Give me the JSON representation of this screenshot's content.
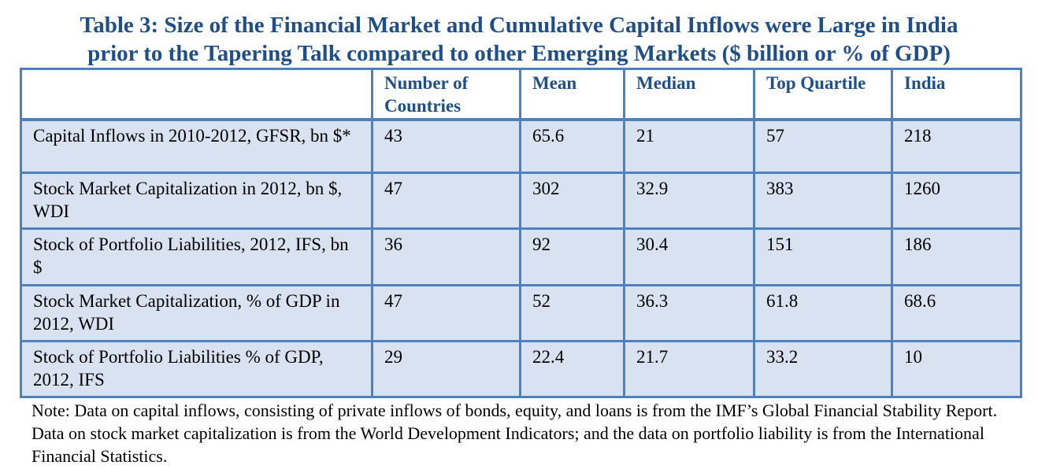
{
  "title": {
    "line1": "Table 3: Size of the Financial Market and Cumulative Capital Inflows were Large in India",
    "line2": "prior to the Tapering Talk compared to other Emerging Markets ($ billion or % of GDP)"
  },
  "table": {
    "headers": [
      "",
      "Number of Countries",
      "Mean",
      "Median",
      "Top Quartile",
      "India"
    ],
    "rows": [
      [
        "Capital Inflows in 2010-2012, GFSR, bn $*",
        "43",
        "65.6",
        "21",
        "57",
        "218"
      ],
      [
        "Stock Market Capitalization in 2012, bn $, WDI",
        "47",
        "302",
        "32.9",
        "383",
        "1260"
      ],
      [
        "Stock of Portfolio Liabilities, 2012, IFS, bn $",
        "36",
        "92",
        "30.4",
        "151",
        "186"
      ],
      [
        "Stock Market Capitalization, % of GDP in 2012, WDI",
        "47",
        "52",
        "36.3",
        "61.8",
        "68.6"
      ],
      [
        "Stock of Portfolio Liabilities % of GDP, 2012, IFS",
        "29",
        "22.4",
        "21.7",
        "33.2",
        "10"
      ]
    ]
  },
  "note": "Note: Data on capital inflows, consisting of private inflows of bonds, equity, and loans is from the IMF’s Global Financial Stability Report. Data on stock market capitalization is from the World Development Indicators; and the data on portfolio liability is from the International Financial Statistics.",
  "colors": {
    "title_text": "#1f4e8c",
    "border": "#4f81bd",
    "row_fill": "#d9e2f1"
  }
}
